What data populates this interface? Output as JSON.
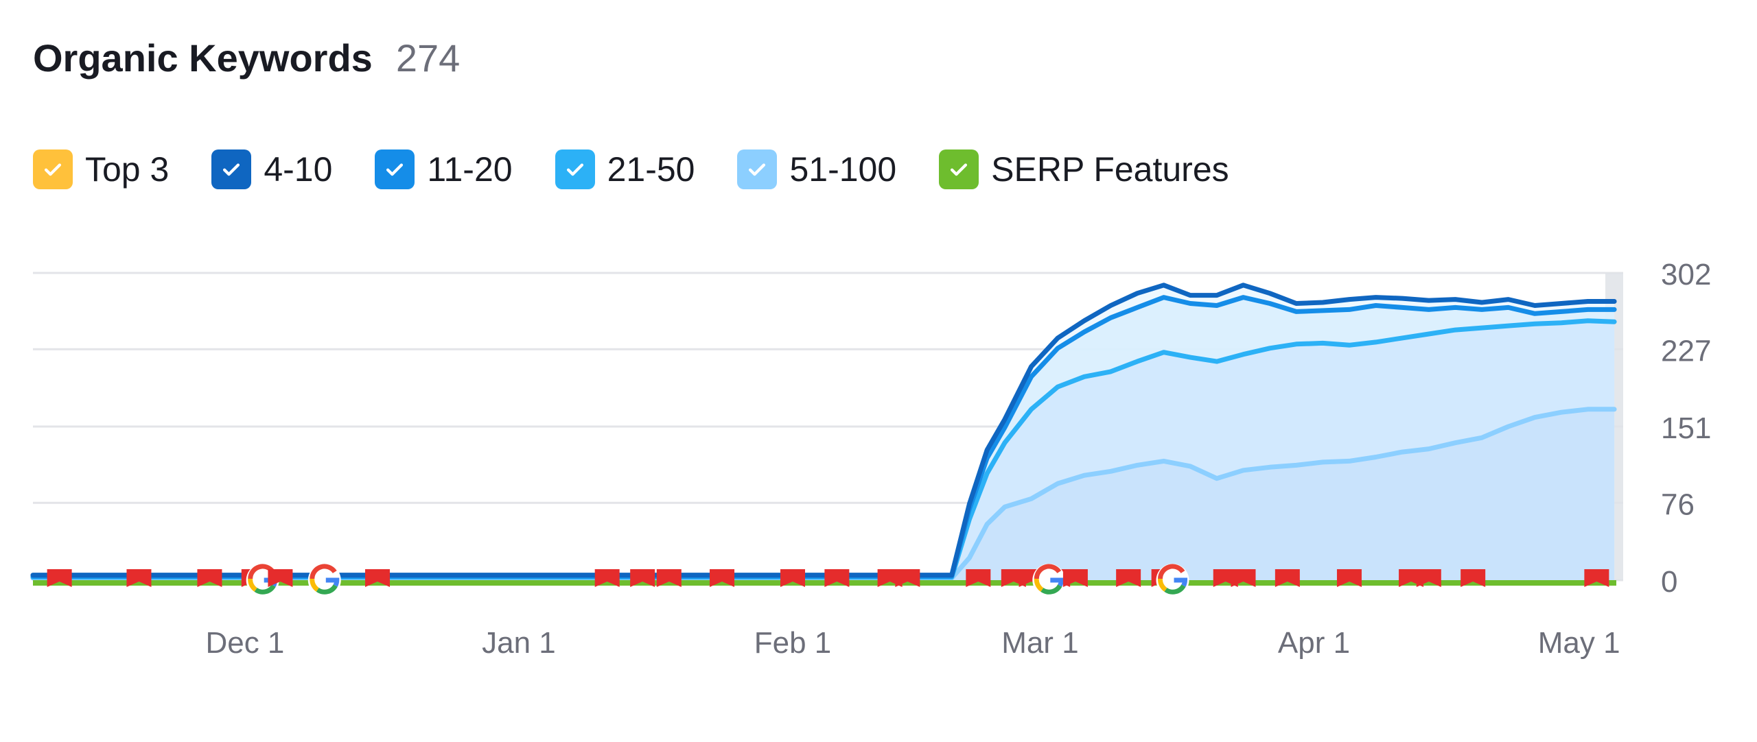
{
  "header": {
    "title": "Organic Keywords",
    "count": "274"
  },
  "legend": [
    {
      "label": "Top 3",
      "color": "#ffc13b",
      "checked": true
    },
    {
      "label": "4-10",
      "color": "#0f66c1",
      "checked": true
    },
    {
      "label": "11-20",
      "color": "#158de8",
      "checked": true
    },
    {
      "label": "21-50",
      "color": "#2cb1f6",
      "checked": true
    },
    {
      "label": "51-100",
      "color": "#8ccfff",
      "checked": true
    },
    {
      "label": "SERP Features",
      "color": "#6ebd2e",
      "checked": true
    }
  ],
  "chart_data": {
    "type": "area",
    "ylim": [
      0,
      302
    ],
    "yticks": [
      0,
      76,
      151,
      227,
      302
    ],
    "ytick_labels": [
      "0",
      "76",
      "151",
      "227",
      "302"
    ],
    "xlim": [
      "2024-11-07",
      "2025-05-06"
    ],
    "xticks": [
      "2024-12-01",
      "2025-01-01",
      "2025-02-01",
      "2025-03-01",
      "2025-04-01",
      "2025-05-01"
    ],
    "xtick_labels": [
      "Dec 1",
      "Jan 1",
      "Feb 1",
      "Mar 1",
      "Apr 1",
      "May 1"
    ],
    "grid": true,
    "x": [
      "2024-11-07",
      "2025-02-19",
      "2025-02-21",
      "2025-02-23",
      "2025-02-25",
      "2025-02-28",
      "2025-03-03",
      "2025-03-06",
      "2025-03-09",
      "2025-03-12",
      "2025-03-15",
      "2025-03-18",
      "2025-03-21",
      "2025-03-24",
      "2025-03-27",
      "2025-03-30",
      "2025-04-02",
      "2025-04-05",
      "2025-04-08",
      "2025-04-11",
      "2025-04-14",
      "2025-04-17",
      "2025-04-20",
      "2025-04-23",
      "2025-04-26",
      "2025-04-29",
      "2025-05-02",
      "2025-05-05"
    ],
    "series": [
      {
        "name": "51-100",
        "color": "#8ccfff",
        "values": [
          2,
          2,
          22,
          55,
          72,
          80,
          95,
          103,
          107,
          113,
          117,
          112,
          100,
          108,
          111,
          113,
          116,
          117,
          121,
          126,
          129,
          135,
          140,
          151,
          160,
          165,
          168,
          168
        ]
      },
      {
        "name": "21-50",
        "color": "#2cb1f6",
        "values": [
          3,
          3,
          60,
          105,
          135,
          168,
          190,
          200,
          205,
          215,
          224,
          219,
          215,
          222,
          228,
          232,
          233,
          231,
          234,
          238,
          242,
          246,
          248,
          250,
          252,
          253,
          255,
          254
        ]
      },
      {
        "name": "11-20",
        "color": "#158de8",
        "values": [
          4,
          4,
          70,
          120,
          150,
          200,
          228,
          244,
          258,
          268,
          278,
          272,
          270,
          278,
          272,
          264,
          265,
          266,
          270,
          268,
          266,
          268,
          266,
          268,
          262,
          264,
          266,
          266
        ]
      },
      {
        "name": "4-10",
        "color": "#0f66c1",
        "values": [
          5,
          5,
          75,
          128,
          158,
          210,
          238,
          255,
          270,
          282,
          290,
          280,
          280,
          290,
          282,
          272,
          273,
          276,
          278,
          277,
          275,
          276,
          273,
          276,
          270,
          272,
          274,
          274
        ]
      }
    ],
    "serp_features": {
      "color": "#6ebd2e",
      "value": 0,
      "markers": [
        {
          "date": "2024-11-10",
          "type": "flag"
        },
        {
          "date": "2024-11-19",
          "type": "flag"
        },
        {
          "date": "2024-11-27",
          "type": "flag"
        },
        {
          "date": "2024-12-02",
          "type": "flag"
        },
        {
          "date": "2024-12-03",
          "type": "google"
        },
        {
          "date": "2024-12-05",
          "type": "flag"
        },
        {
          "date": "2024-12-10",
          "type": "google"
        },
        {
          "date": "2024-12-16",
          "type": "flag"
        },
        {
          "date": "2025-01-11",
          "type": "flag"
        },
        {
          "date": "2025-01-15",
          "type": "flag"
        },
        {
          "date": "2025-01-18",
          "type": "flag"
        },
        {
          "date": "2025-01-24",
          "type": "flag"
        },
        {
          "date": "2025-02-01",
          "type": "flag"
        },
        {
          "date": "2025-02-06",
          "type": "flag"
        },
        {
          "date": "2025-02-12",
          "type": "flag"
        },
        {
          "date": "2025-02-14",
          "type": "flag"
        },
        {
          "date": "2025-02-22",
          "type": "flag"
        },
        {
          "date": "2025-02-26",
          "type": "flag"
        },
        {
          "date": "2025-02-28",
          "type": "flag"
        },
        {
          "date": "2025-03-03",
          "type": "flag"
        },
        {
          "date": "2025-03-02",
          "type": "google"
        },
        {
          "date": "2025-03-05",
          "type": "flag"
        },
        {
          "date": "2025-03-11",
          "type": "flag"
        },
        {
          "date": "2025-03-15",
          "type": "flag"
        },
        {
          "date": "2025-03-16",
          "type": "google"
        },
        {
          "date": "2025-03-22",
          "type": "flag"
        },
        {
          "date": "2025-03-24",
          "type": "flag"
        },
        {
          "date": "2025-03-29",
          "type": "flag"
        },
        {
          "date": "2025-04-05",
          "type": "flag"
        },
        {
          "date": "2025-04-12",
          "type": "flag"
        },
        {
          "date": "2025-04-14",
          "type": "flag"
        },
        {
          "date": "2025-04-19",
          "type": "flag"
        },
        {
          "date": "2025-05-03",
          "type": "flag"
        }
      ]
    }
  }
}
